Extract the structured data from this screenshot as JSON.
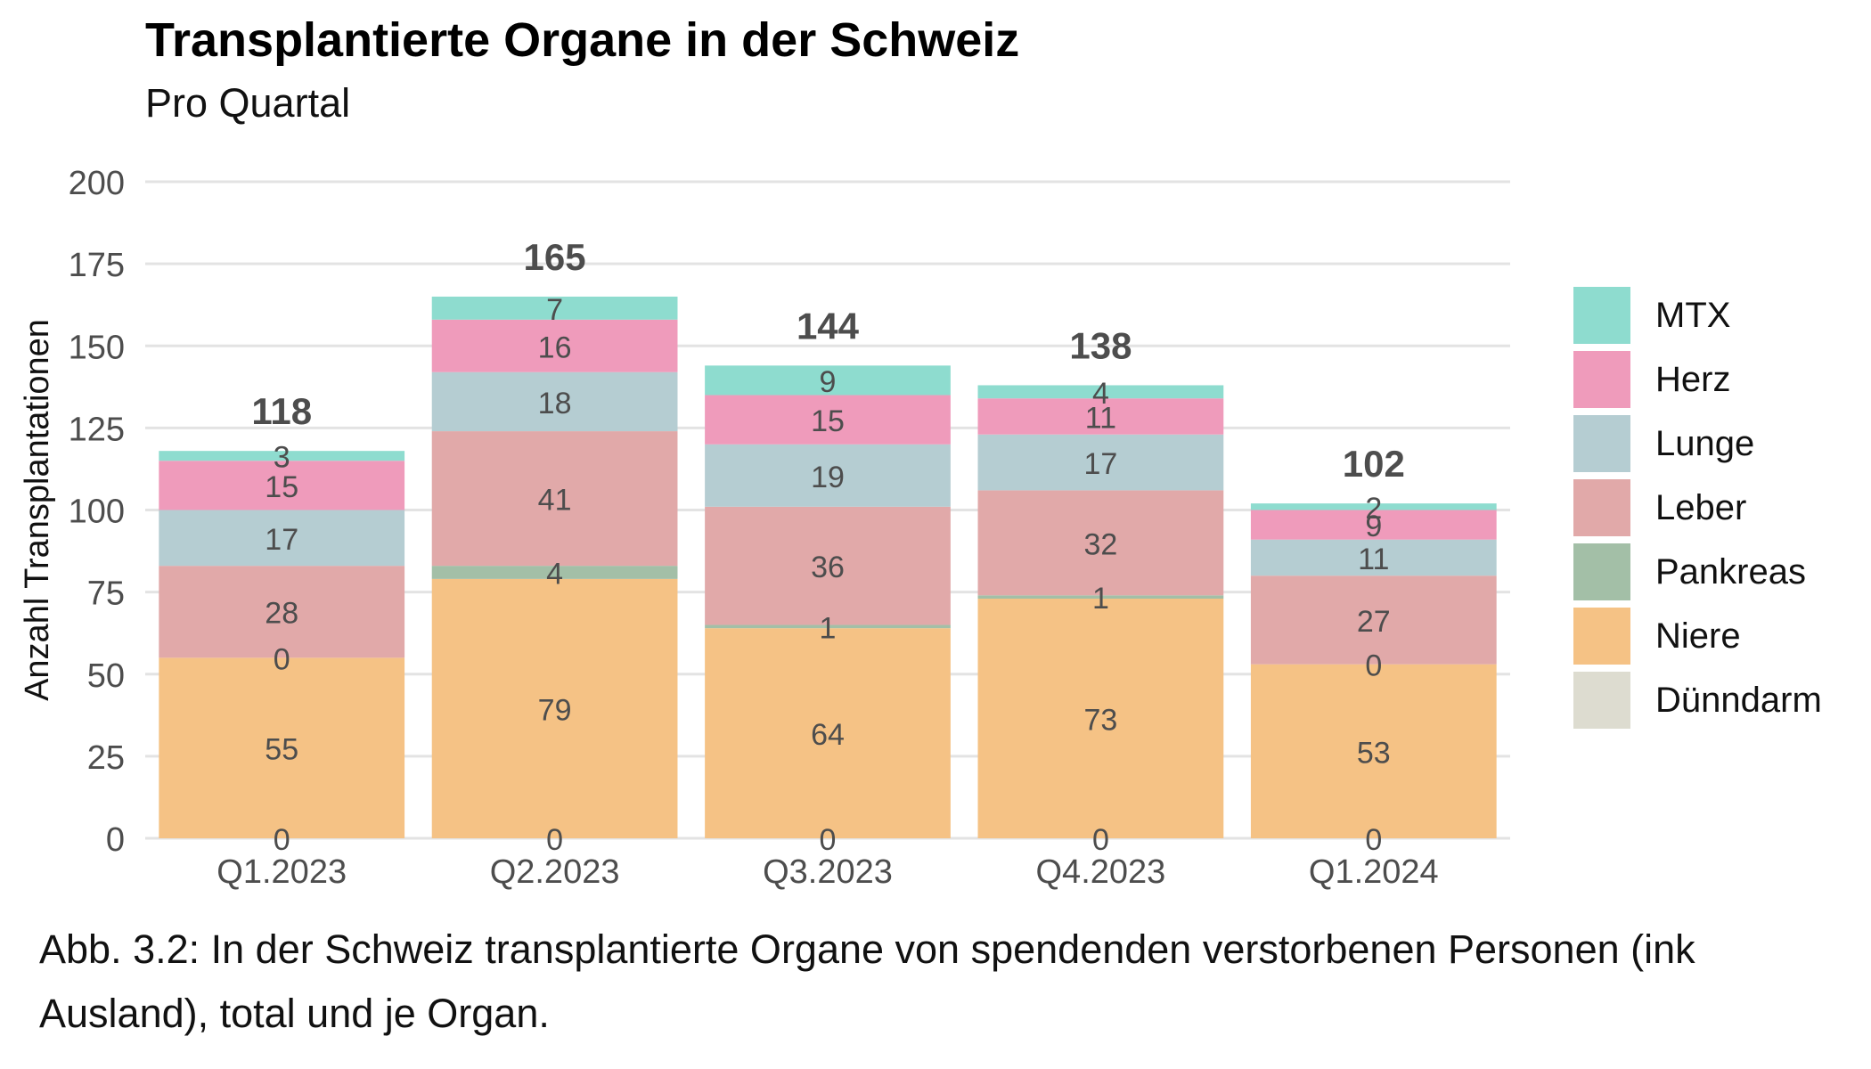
{
  "title": "Transplantierte Organe in der Schweiz",
  "subtitle": "Pro Quartal",
  "caption_line1": "Abb. 3.2: In der Schweiz transplantierte Organe von spendenden verstorbenen Personen (ink",
  "caption_line2": "Ausland), total und je Organ.",
  "chart_data": {
    "type": "bar",
    "stacked": true,
    "title": "Transplantierte Organe in der Schweiz",
    "subtitle": "Pro Quartal",
    "xlabel": "",
    "ylabel": "Anzahl Transplantationen",
    "ylim": [
      0,
      200
    ],
    "yticks": [
      0,
      25,
      50,
      75,
      100,
      125,
      150,
      175,
      200
    ],
    "grid": true,
    "legend_position": "right",
    "categories": [
      "Q1.2023",
      "Q2.2023",
      "Q3.2023",
      "Q4.2023",
      "Q1.2024"
    ],
    "totals": [
      118,
      165,
      144,
      138,
      102
    ],
    "series": [
      {
        "name": "Dünndarm",
        "color": "#dddcd0",
        "values": [
          0,
          0,
          0,
          0,
          0
        ]
      },
      {
        "name": "Niere",
        "color": "#f5c285",
        "values": [
          55,
          79,
          64,
          73,
          53
        ]
      },
      {
        "name": "Pankreas",
        "color": "#a3bfa7",
        "values": [
          0,
          4,
          1,
          1,
          0
        ]
      },
      {
        "name": "Leber",
        "color": "#e1a9a9",
        "values": [
          28,
          41,
          36,
          32,
          27
        ]
      },
      {
        "name": "Lunge",
        "color": "#b5cdd2",
        "values": [
          17,
          18,
          19,
          17,
          11
        ]
      },
      {
        "name": "Herz",
        "color": "#ef9bbb",
        "values": [
          15,
          16,
          15,
          11,
          9
        ]
      },
      {
        "name": "MTX",
        "color": "#8edccf",
        "values": [
          3,
          7,
          9,
          4,
          2
        ]
      }
    ],
    "legend_order": [
      "MTX",
      "Herz",
      "Lunge",
      "Leber",
      "Pankreas",
      "Niere",
      "Dünndarm"
    ]
  }
}
